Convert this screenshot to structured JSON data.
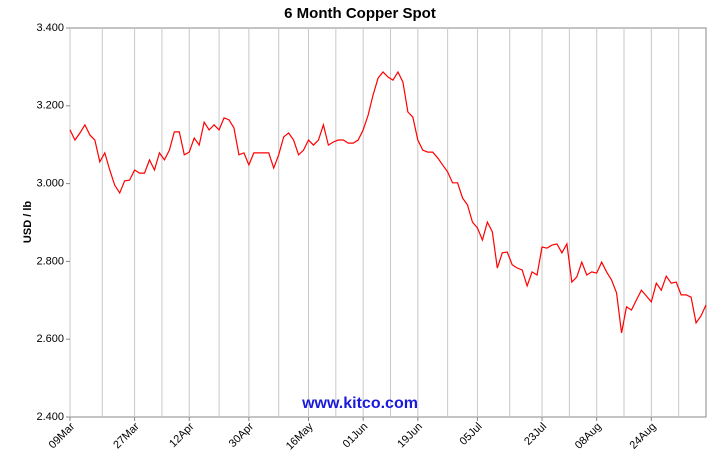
{
  "chart_data": {
    "type": "line",
    "title": "6 Month Copper Spot",
    "y_label": "USD / lb",
    "watermark": "www.kitco.com",
    "categories": [
      "09Mar",
      null,
      null,
      null,
      null,
      null,
      null,
      null,
      null,
      null,
      null,
      null,
      null,
      "27Mar",
      null,
      null,
      null,
      null,
      null,
      null,
      null,
      null,
      null,
      null,
      "12Apr",
      null,
      null,
      null,
      null,
      null,
      null,
      null,
      null,
      null,
      null,
      null,
      "30Apr",
      null,
      null,
      null,
      null,
      null,
      null,
      null,
      null,
      null,
      null,
      null,
      "16May",
      null,
      null,
      null,
      null,
      null,
      null,
      null,
      null,
      null,
      null,
      "01Jun",
      null,
      null,
      null,
      null,
      null,
      null,
      null,
      null,
      null,
      null,
      "19Jun",
      null,
      null,
      null,
      null,
      null,
      null,
      null,
      null,
      null,
      null,
      null,
      "05Jul",
      null,
      null,
      null,
      null,
      null,
      null,
      null,
      null,
      null,
      null,
      null,
      null,
      "23Jul",
      null,
      null,
      null,
      null,
      null,
      null,
      null,
      null,
      null,
      null,
      "08Aug",
      null,
      null,
      null,
      null,
      null,
      null,
      null,
      null,
      null,
      null,
      "24Aug",
      null,
      null,
      null,
      null,
      null,
      null,
      null,
      null,
      null,
      null,
      null
    ],
    "values": [
      3.138,
      3.112,
      3.13,
      3.151,
      3.125,
      3.112,
      3.056,
      3.079,
      3.035,
      2.996,
      2.976,
      3.007,
      3.009,
      3.035,
      3.027,
      3.027,
      3.061,
      3.035,
      3.079,
      3.061,
      3.086,
      3.133,
      3.133,
      3.074,
      3.081,
      3.117,
      3.099,
      3.158,
      3.138,
      3.151,
      3.138,
      3.169,
      3.164,
      3.143,
      3.074,
      3.079,
      3.048,
      3.079,
      3.079,
      3.079,
      3.079,
      3.04,
      3.074,
      3.12,
      3.13,
      3.112,
      3.074,
      3.086,
      3.112,
      3.099,
      3.112,
      3.151,
      3.099,
      3.107,
      3.112,
      3.112,
      3.104,
      3.104,
      3.112,
      3.138,
      3.176,
      3.228,
      3.271,
      3.287,
      3.274,
      3.266,
      3.287,
      3.261,
      3.184,
      3.171,
      3.112,
      3.086,
      3.081,
      3.081,
      3.066,
      3.048,
      3.03,
      3.002,
      3.002,
      2.963,
      2.945,
      2.901,
      2.886,
      2.855,
      2.901,
      2.876,
      2.783,
      2.822,
      2.824,
      2.791,
      2.783,
      2.778,
      2.737,
      2.773,
      2.765,
      2.837,
      2.834,
      2.842,
      2.845,
      2.822,
      2.845,
      2.747,
      2.76,
      2.798,
      2.765,
      2.773,
      2.77,
      2.798,
      2.773,
      2.752,
      2.719,
      2.616,
      2.683,
      2.675,
      2.701,
      2.726,
      2.711,
      2.696,
      2.744,
      2.726,
      2.762,
      2.744,
      2.747,
      2.714,
      2.714,
      2.708,
      2.642,
      2.66,
      2.688
    ],
    "color": "#ff0000",
    "ylim": [
      2.4,
      3.4
    ],
    "yticks": [
      {
        "value": 2.4,
        "label": "2.400"
      },
      {
        "value": 2.6,
        "label": "2.600"
      },
      {
        "value": 2.8,
        "label": "2.800"
      },
      {
        "value": 3.0,
        "label": "3.000"
      },
      {
        "value": 3.2,
        "label": "3.200"
      },
      {
        "value": 3.4,
        "label": "3.400"
      }
    ],
    "grid": true
  }
}
